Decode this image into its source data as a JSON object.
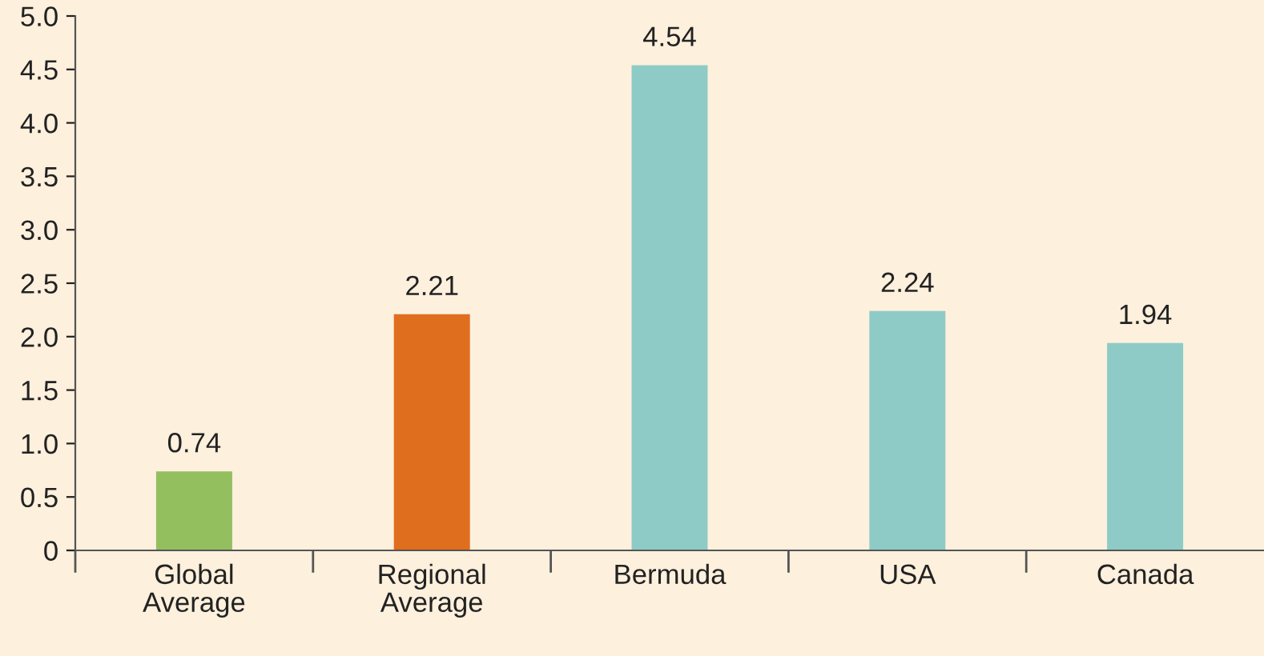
{
  "chart_data": {
    "type": "bar",
    "categories": [
      "Global\nAverage",
      "Regional\nAverage",
      "Bermuda",
      "USA",
      "Canada"
    ],
    "values": [
      0.74,
      2.21,
      4.54,
      2.24,
      1.94
    ],
    "colors": [
      "#93bf5f",
      "#e06e1f",
      "#8ecbc6",
      "#8ecbc6",
      "#8ecbc6"
    ],
    "ylim": [
      0,
      5
    ],
    "yticks": [
      0,
      0.5,
      {
        "value": 1,
        "label": "1.0"
      },
      1.5,
      {
        "value": 2,
        "label": "2.0"
      },
      2.5,
      {
        "value": 3,
        "label": "3.0"
      },
      3.5,
      {
        "value": 4,
        "label": "4.0"
      },
      4.5,
      {
        "value": 5,
        "label": "5.0"
      }
    ],
    "data_labels": true,
    "grid": false,
    "legend": false
  }
}
